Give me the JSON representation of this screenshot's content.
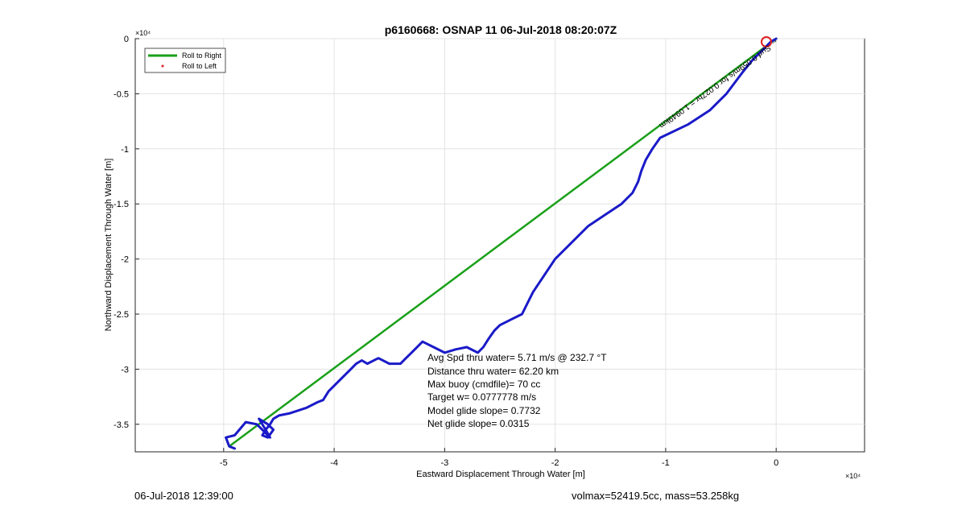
{
  "chart_data": {
    "type": "line",
    "title": "p6160668: OSNAP 11 06-Jul-2018 08:20:07Z",
    "xlabel": "Eastward Displacement Through Water [m]",
    "ylabel": "Northward Displacement Through Water [m]",
    "x_exponent_label": "×10⁴",
    "y_exponent_label": "×10⁴",
    "xlim": [
      -5.8,
      0.8
    ],
    "ylim": [
      -3.75,
      0
    ],
    "x_ticks": [
      -5,
      -4,
      -3,
      -2,
      -1,
      0
    ],
    "x_tick_labels": [
      "-5",
      "-4",
      "-3",
      "-2",
      "-1",
      "0"
    ],
    "y_ticks": [
      0,
      -0.5,
      -1,
      -1.5,
      -2,
      -2.5,
      -3,
      -3.5
    ],
    "y_tick_labels": [
      "0",
      "-0.5",
      "-1",
      "-1.5",
      "-2",
      "-2.5",
      "-3",
      "-3.5"
    ],
    "grid": true,
    "legend_placement": "top-left",
    "legend": [
      {
        "label": "Roll to Right",
        "color": "#1aa01a",
        "style": "line"
      },
      {
        "label": "Roll to Left",
        "color": "#e02020",
        "style": "dot"
      }
    ],
    "series": [
      {
        "name": "Roll to Right",
        "color": "#1aa01a",
        "x": [
          0.0,
          -4.95
        ],
        "y": [
          0.0,
          -3.7
        ]
      },
      {
        "color": "#1a1ac8",
        "x": [
          0.0,
          -0.05,
          -0.1,
          -0.17,
          -0.22,
          -0.3,
          -0.45,
          -0.6,
          -0.8,
          -1.05,
          -1.12,
          -1.18,
          -1.22,
          -1.25,
          -1.3,
          -1.4,
          -1.55,
          -1.7,
          -1.85,
          -2.0,
          -2.1,
          -2.2,
          -2.25,
          -2.3,
          -2.4,
          -2.5,
          -2.55,
          -2.6,
          -2.65,
          -2.7,
          -2.8,
          -2.9,
          -3.0,
          -3.1,
          -3.2,
          -3.3,
          -3.35,
          -3.4,
          -3.5,
          -3.6,
          -3.7,
          -3.75,
          -3.8,
          -3.85,
          -3.95,
          -4.05,
          -4.1,
          -4.15,
          -4.25,
          -4.4,
          -4.5,
          -4.55,
          -4.58,
          -4.62,
          -4.65,
          -4.6,
          -4.55,
          -4.6,
          -4.68,
          -4.62,
          -4.58,
          -4.7,
          -4.8,
          -4.9,
          -4.98,
          -4.95,
          -4.9
        ],
        "y": [
          0.0,
          -0.03,
          -0.08,
          -0.15,
          -0.2,
          -0.3,
          -0.5,
          -0.65,
          -0.78,
          -0.9,
          -1.0,
          -1.1,
          -1.2,
          -1.3,
          -1.4,
          -1.5,
          -1.6,
          -1.7,
          -1.85,
          -2.0,
          -2.15,
          -2.3,
          -2.4,
          -2.5,
          -2.55,
          -2.6,
          -2.65,
          -2.72,
          -2.8,
          -2.85,
          -2.8,
          -2.82,
          -2.85,
          -2.8,
          -2.75,
          -2.85,
          -2.9,
          -2.95,
          -2.95,
          -2.9,
          -2.95,
          -2.92,
          -2.95,
          -3.0,
          -3.1,
          -3.2,
          -3.28,
          -3.3,
          -3.35,
          -3.4,
          -3.42,
          -3.45,
          -3.5,
          -3.55,
          -3.6,
          -3.62,
          -3.55,
          -3.5,
          -3.45,
          -3.55,
          -3.62,
          -3.5,
          -3.48,
          -3.6,
          -3.62,
          -3.7,
          -3.72
        ]
      }
    ],
    "annotations": [
      "Avg Spd thru water=  5.71 m/s @ 232.7 °T",
      "Distance thru water= 62.20 km",
      "Max buoy (cmdfile)= 70 cc",
      "Target w= 0.0777778 m/s",
      "Model glide slope= 0.7732",
      "Net glide slope= 0.0315"
    ],
    "rotated_label": "← Surf  0.059m/s  for 0.027hr = 1.0949km"
  },
  "footer": {
    "left": "06-Jul-2018 12:39:00",
    "right": "volmax=52419.5cc, mass=53.258kg"
  }
}
